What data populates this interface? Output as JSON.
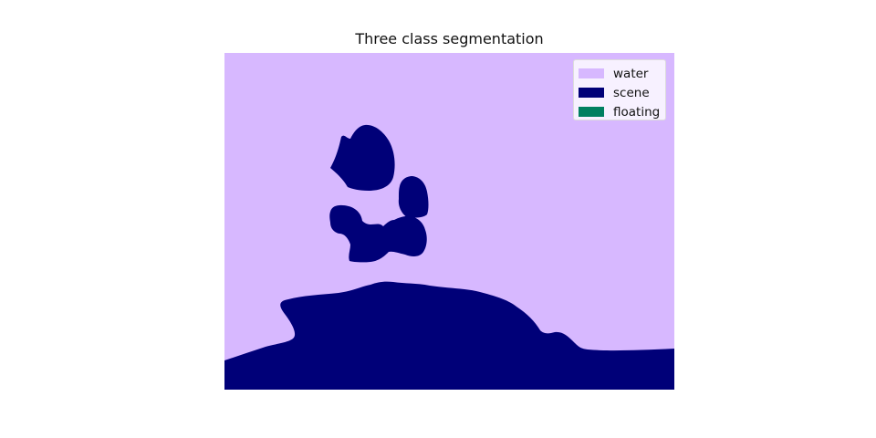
{
  "figure": {
    "title": "Three class segmentation"
  },
  "legend": {
    "items": [
      {
        "label": "water",
        "color": "#d7b8ff"
      },
      {
        "label": "scene",
        "color": "#000078"
      },
      {
        "label": "floating",
        "color": "#008060"
      }
    ]
  }
}
